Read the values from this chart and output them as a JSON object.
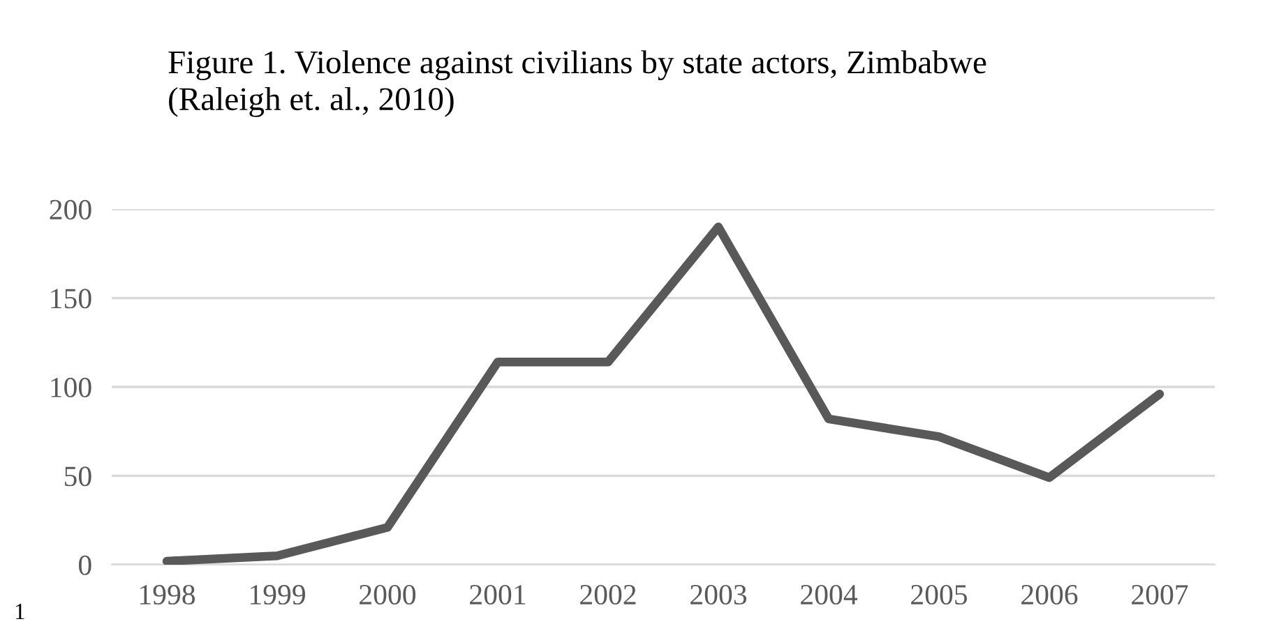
{
  "chart_data": {
    "type": "line",
    "title": "Figure 1. Violence against civilians by state actors, Zimbabwe\n(Raleigh et. al., 2010)",
    "categories": [
      "1998",
      "1999",
      "2000",
      "2001",
      "2002",
      "2003",
      "2004",
      "2005",
      "2006",
      "2007"
    ],
    "series": [
      {
        "color": "#595959",
        "values": [
          2,
          5,
          21,
          114,
          114,
          190,
          82,
          72,
          49,
          96
        ]
      }
    ],
    "ylim": [
      0,
      200
    ],
    "yticks": [
      0,
      50,
      100,
      150,
      200
    ],
    "grid": "y",
    "legend": false,
    "marker": "none",
    "line_style": "solid",
    "annotations": [
      "1"
    ]
  }
}
